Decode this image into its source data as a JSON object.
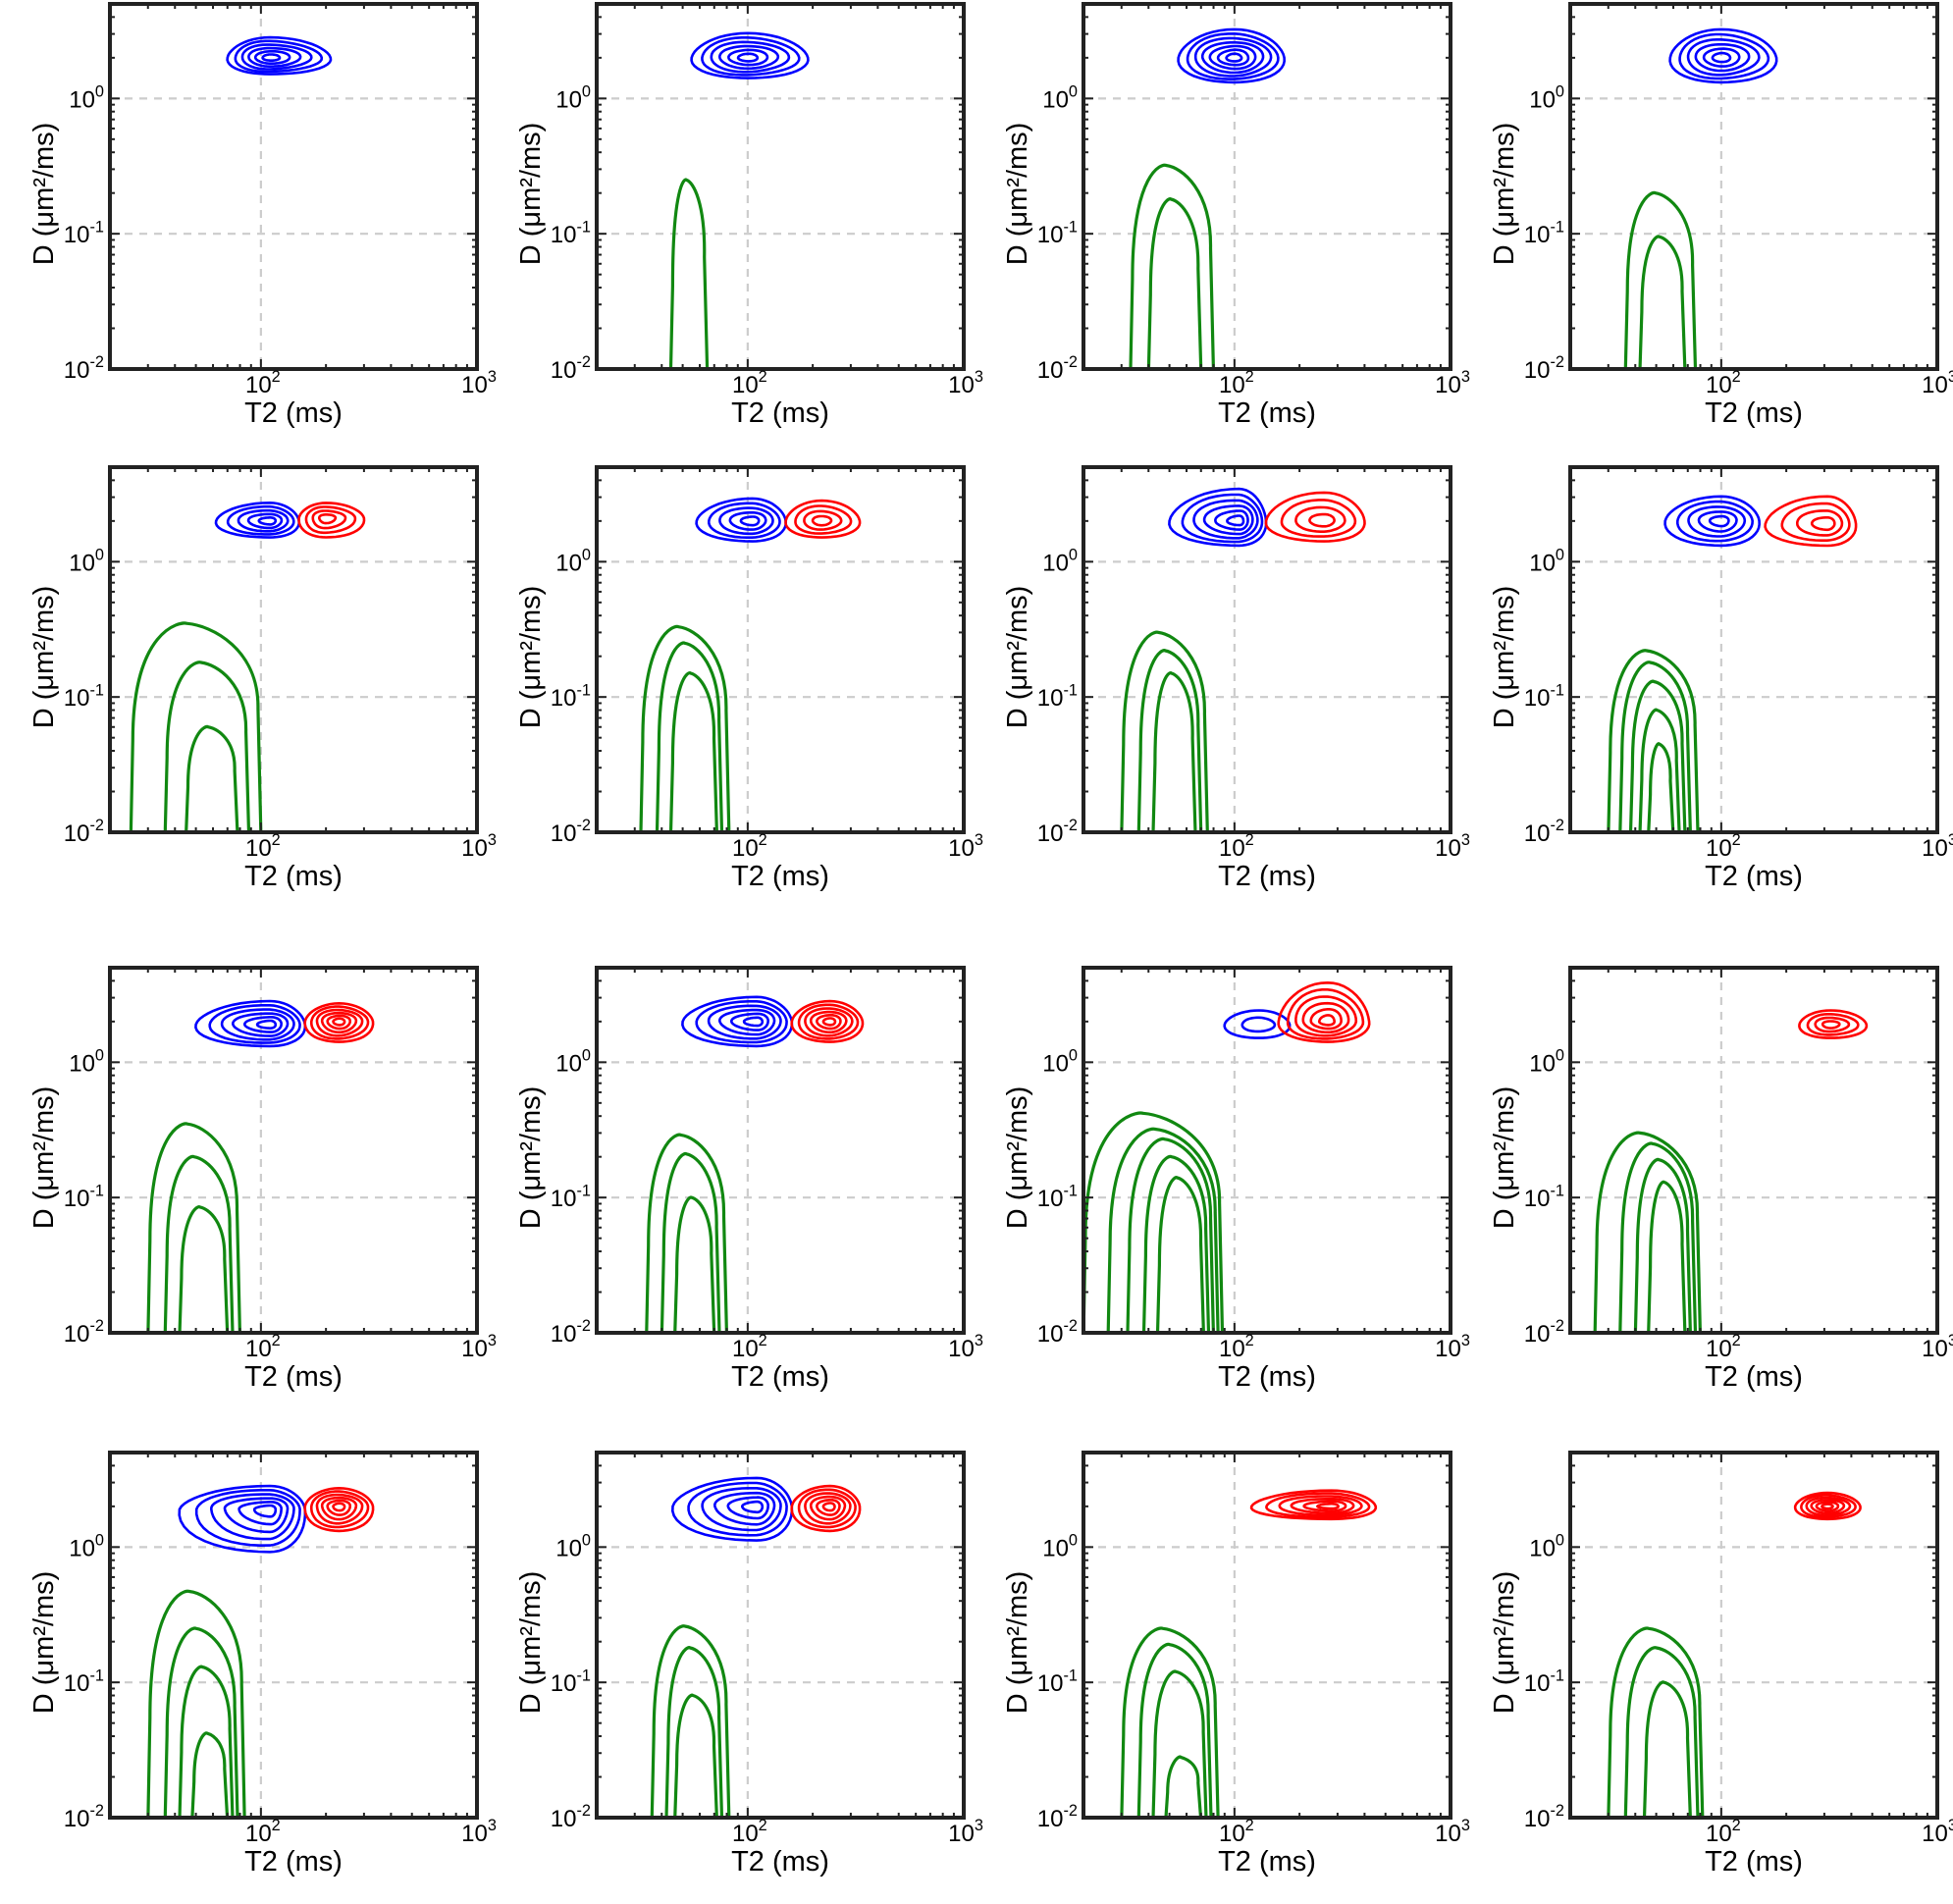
{
  "axes": {
    "xlabel": "T2 (ms)",
    "ylabel": "D (μm²/ms)",
    "x_scale": "log",
    "y_scale": "log",
    "xlim": [
      20,
      1000
    ],
    "ylim": [
      0.01,
      5
    ],
    "x_ticks": [
      {
        "value": 100,
        "base": "10",
        "exp": "2"
      },
      {
        "value": 1000,
        "base": "10",
        "exp": "3"
      }
    ],
    "y_ticks": [
      {
        "value": 0.01,
        "base": "10",
        "exp": "-2"
      },
      {
        "value": 0.1,
        "base": "10",
        "exp": "-1"
      },
      {
        "value": 1,
        "base": "10",
        "exp": "0"
      }
    ],
    "grid": true
  },
  "colors": {
    "blue": "#0000ff",
    "red": "#ff0000",
    "green": "#118811",
    "grid": "#cccccc",
    "frame": "#222222"
  },
  "chart_data": [
    {
      "type": "contour",
      "row": 1,
      "col": 1,
      "peaks": [
        {
          "color": "blue",
          "t2": 110,
          "d": 2.0,
          "t2_lo": 70,
          "t2_hi": 210,
          "d_lo": 1.5,
          "d_hi": 2.8,
          "levels": 6
        }
      ]
    },
    {
      "type": "contour",
      "row": 1,
      "col": 2,
      "peaks": [
        {
          "color": "blue",
          "t2": 100,
          "d": 2.0,
          "t2_lo": 55,
          "t2_hi": 190,
          "d_lo": 1.4,
          "d_hi": 3.0,
          "levels": 6
        }
      ],
      "green": [
        {
          "t2_left": 44,
          "t2_right": 65,
          "d_top": 0.25,
          "open": true
        }
      ]
    },
    {
      "type": "contour",
      "row": 1,
      "col": 3,
      "peaks": [
        {
          "color": "blue",
          "t2": 100,
          "d": 2.0,
          "t2_lo": 55,
          "t2_hi": 170,
          "d_lo": 1.3,
          "d_hi": 3.2,
          "levels": 7
        }
      ],
      "green": [
        {
          "t2_left": 33,
          "t2_right": 80,
          "d_top": 0.32,
          "open": true
        },
        {
          "t2_left": 40,
          "t2_right": 70,
          "d_top": 0.18,
          "open": true
        }
      ]
    },
    {
      "type": "contour",
      "row": 1,
      "col": 4,
      "peaks": [
        {
          "color": "blue",
          "t2": 100,
          "d": 2.0,
          "t2_lo": 58,
          "t2_hi": 180,
          "d_lo": 1.3,
          "d_hi": 3.2,
          "levels": 6
        }
      ],
      "green": [
        {
          "t2_left": 36,
          "t2_right": 76,
          "d_top": 0.2,
          "open": true
        },
        {
          "t2_left": 42,
          "t2_right": 68,
          "d_top": 0.095,
          "open": true
        }
      ]
    },
    {
      "type": "contour",
      "row": 2,
      "col": 1,
      "peaks": [
        {
          "color": "blue",
          "t2": 110,
          "d": 2.0,
          "t2_lo": 62,
          "t2_hi": 150,
          "d_lo": 1.5,
          "d_hi": 2.7,
          "levels": 5
        },
        {
          "color": "red",
          "t2": 200,
          "d": 2.1,
          "t2_lo": 150,
          "t2_hi": 300,
          "d_lo": 1.5,
          "d_hi": 2.7,
          "levels": 4
        }
      ],
      "green": [
        {
          "t2_left": 25,
          "t2_right": 100,
          "d_top": 0.35,
          "open": true
        },
        {
          "t2_left": 36,
          "t2_right": 88,
          "d_top": 0.18,
          "open": true
        },
        {
          "t2_left": 45,
          "t2_right": 78,
          "d_top": 0.06,
          "open": true
        }
      ]
    },
    {
      "type": "contour",
      "row": 2,
      "col": 2,
      "peaks": [
        {
          "color": "blue",
          "t2": 105,
          "d": 2.0,
          "t2_lo": 58,
          "t2_hi": 150,
          "d_lo": 1.4,
          "d_hi": 2.9,
          "levels": 5
        },
        {
          "color": "red",
          "t2": 220,
          "d": 2.0,
          "t2_lo": 150,
          "t2_hi": 330,
          "d_lo": 1.5,
          "d_hi": 2.8,
          "levels": 4
        }
      ],
      "green": [
        {
          "t2_left": 32,
          "t2_right": 82,
          "d_top": 0.33,
          "open": true
        },
        {
          "t2_left": 38,
          "t2_right": 76,
          "d_top": 0.25,
          "open": true
        },
        {
          "t2_left": 44,
          "t2_right": 72,
          "d_top": 0.15,
          "open": true
        }
      ]
    },
    {
      "type": "contour",
      "row": 2,
      "col": 3,
      "peaks": [
        {
          "color": "blue",
          "t2": 105,
          "d": 2.0,
          "t2_lo": 50,
          "t2_hi": 140,
          "d_lo": 1.3,
          "d_hi": 3.4,
          "levels": 6
        },
        {
          "color": "red",
          "t2": 260,
          "d": 2.0,
          "t2_lo": 140,
          "t2_hi": 400,
          "d_lo": 1.4,
          "d_hi": 3.2,
          "levels": 4
        }
      ],
      "green": [
        {
          "t2_left": 30,
          "t2_right": 75,
          "d_top": 0.3,
          "open": true
        },
        {
          "t2_left": 36,
          "t2_right": 70,
          "d_top": 0.22,
          "open": true
        },
        {
          "t2_left": 42,
          "t2_right": 66,
          "d_top": 0.15,
          "open": true
        }
      ]
    },
    {
      "type": "contour",
      "row": 2,
      "col": 4,
      "peaks": [
        {
          "color": "blue",
          "t2": 100,
          "d": 2.0,
          "t2_lo": 55,
          "t2_hi": 150,
          "d_lo": 1.3,
          "d_hi": 3.0,
          "levels": 5
        },
        {
          "color": "red",
          "t2": 310,
          "d": 1.9,
          "t2_lo": 160,
          "t2_hi": 420,
          "d_lo": 1.3,
          "d_hi": 3.0,
          "levels": 4
        }
      ],
      "green": [
        {
          "t2_left": 30,
          "t2_right": 78,
          "d_top": 0.22,
          "open": true
        },
        {
          "t2_left": 34,
          "t2_right": 72,
          "d_top": 0.18,
          "open": true
        },
        {
          "t2_left": 38,
          "t2_right": 68,
          "d_top": 0.13,
          "open": true
        },
        {
          "t2_left": 42,
          "t2_right": 64,
          "d_top": 0.08,
          "open": true
        },
        {
          "t2_left": 46,
          "t2_right": 60,
          "d_top": 0.045,
          "open": true
        }
      ]
    },
    {
      "type": "contour",
      "row": 3,
      "col": 1,
      "peaks": [
        {
          "color": "blue",
          "t2": 110,
          "d": 1.9,
          "t2_lo": 50,
          "t2_hi": 160,
          "d_lo": 1.3,
          "d_hi": 2.8,
          "levels": 6
        },
        {
          "color": "red",
          "t2": 230,
          "d": 2.0,
          "t2_lo": 160,
          "t2_hi": 330,
          "d_lo": 1.4,
          "d_hi": 2.7,
          "levels": 6
        }
      ],
      "green": [
        {
          "t2_left": 30,
          "t2_right": 80,
          "d_top": 0.35,
          "open": true
        },
        {
          "t2_left": 36,
          "t2_right": 74,
          "d_top": 0.2,
          "open": true
        },
        {
          "t2_left": 42,
          "t2_right": 70,
          "d_top": 0.085,
          "open": true
        }
      ]
    },
    {
      "type": "contour",
      "row": 3,
      "col": 2,
      "peaks": [
        {
          "color": "blue",
          "t2": 110,
          "d": 2.0,
          "t2_lo": 50,
          "t2_hi": 160,
          "d_lo": 1.3,
          "d_hi": 3.0,
          "levels": 6
        },
        {
          "color": "red",
          "t2": 240,
          "d": 2.0,
          "t2_lo": 160,
          "t2_hi": 340,
          "d_lo": 1.4,
          "d_hi": 2.8,
          "levels": 6
        }
      ],
      "green": [
        {
          "t2_left": 34,
          "t2_right": 80,
          "d_top": 0.29,
          "open": true
        },
        {
          "t2_left": 40,
          "t2_right": 74,
          "d_top": 0.21,
          "open": true
        },
        {
          "t2_left": 46,
          "t2_right": 70,
          "d_top": 0.1,
          "open": true
        }
      ]
    },
    {
      "type": "contour",
      "row": 3,
      "col": 3,
      "peaks": [
        {
          "color": "blue",
          "t2": 130,
          "d": 1.9,
          "t2_lo": 90,
          "t2_hi": 180,
          "d_lo": 1.5,
          "d_hi": 2.4,
          "levels": 2
        },
        {
          "color": "red",
          "t2": 270,
          "d": 2.0,
          "t2_lo": 160,
          "t2_hi": 420,
          "d_lo": 1.4,
          "d_hi": 3.8,
          "levels": 6
        }
      ],
      "green": [
        {
          "t2_left": 20,
          "t2_right": 88,
          "d_top": 0.42,
          "open": true
        },
        {
          "t2_left": 26,
          "t2_right": 84,
          "d_top": 0.32,
          "open": true
        },
        {
          "t2_left": 32,
          "t2_right": 80,
          "d_top": 0.27,
          "open": true
        },
        {
          "t2_left": 38,
          "t2_right": 76,
          "d_top": 0.2,
          "open": true
        },
        {
          "t2_left": 44,
          "t2_right": 72,
          "d_top": 0.14,
          "open": true
        }
      ]
    },
    {
      "type": "contour",
      "row": 3,
      "col": 4,
      "peaks": [
        {
          "color": "red",
          "t2": 320,
          "d": 1.9,
          "t2_lo": 230,
          "t2_hi": 470,
          "d_lo": 1.5,
          "d_hi": 2.4,
          "levels": 4
        }
      ],
      "green": [
        {
          "t2_left": 26,
          "t2_right": 80,
          "d_top": 0.3,
          "open": true
        },
        {
          "t2_left": 34,
          "t2_right": 76,
          "d_top": 0.25,
          "open": true
        },
        {
          "t2_left": 40,
          "t2_right": 72,
          "d_top": 0.19,
          "open": true
        },
        {
          "t2_left": 46,
          "t2_right": 68,
          "d_top": 0.13,
          "open": true
        }
      ]
    },
    {
      "type": "contour",
      "row": 4,
      "col": 1,
      "peaks": [
        {
          "color": "blue",
          "t2": 110,
          "d": 1.9,
          "t2_lo": 42,
          "t2_hi": 160,
          "d_lo": 0.9,
          "d_hi": 2.8,
          "levels": 6
        },
        {
          "color": "red",
          "t2": 230,
          "d": 2.0,
          "t2_lo": 160,
          "t2_hi": 330,
          "d_lo": 1.3,
          "d_hi": 2.7,
          "levels": 6
        }
      ],
      "green": [
        {
          "t2_left": 30,
          "t2_right": 84,
          "d_top": 0.47,
          "open": true
        },
        {
          "t2_left": 36,
          "t2_right": 78,
          "d_top": 0.25,
          "open": true
        },
        {
          "t2_left": 42,
          "t2_right": 74,
          "d_top": 0.13,
          "open": true
        },
        {
          "t2_left": 48,
          "t2_right": 70,
          "d_top": 0.042,
          "open": true
        }
      ]
    },
    {
      "type": "contour",
      "row": 4,
      "col": 2,
      "peaks": [
        {
          "color": "blue",
          "t2": 110,
          "d": 2.0,
          "t2_lo": 45,
          "t2_hi": 160,
          "d_lo": 1.1,
          "d_hi": 3.2,
          "levels": 6
        },
        {
          "color": "red",
          "t2": 240,
          "d": 2.0,
          "t2_lo": 160,
          "t2_hi": 330,
          "d_lo": 1.3,
          "d_hi": 2.8,
          "levels": 6
        }
      ],
      "green": [
        {
          "t2_left": 36,
          "t2_right": 82,
          "d_top": 0.26,
          "open": true
        },
        {
          "t2_left": 42,
          "t2_right": 76,
          "d_top": 0.18,
          "open": true
        },
        {
          "t2_left": 46,
          "t2_right": 72,
          "d_top": 0.08,
          "open": true
        }
      ]
    },
    {
      "type": "contour",
      "row": 4,
      "col": 3,
      "peaks": [
        {
          "color": "red",
          "t2": 280,
          "d": 2.0,
          "t2_lo": 120,
          "t2_hi": 450,
          "d_lo": 1.6,
          "d_hi": 2.6,
          "levels": 6
        }
      ],
      "green": [
        {
          "t2_left": 30,
          "t2_right": 84,
          "d_top": 0.25,
          "open": true
        },
        {
          "t2_left": 36,
          "t2_right": 78,
          "d_top": 0.19,
          "open": true
        },
        {
          "t2_left": 42,
          "t2_right": 74,
          "d_top": 0.12,
          "open": true
        },
        {
          "t2_left": 48,
          "t2_right": 70,
          "d_top": 0.028,
          "open": true
        }
      ]
    },
    {
      "type": "contour",
      "row": 4,
      "col": 4,
      "peaks": [
        {
          "color": "red",
          "t2": 310,
          "d": 2.0,
          "t2_lo": 220,
          "t2_hi": 440,
          "d_lo": 1.6,
          "d_hi": 2.5,
          "levels": 6
        }
      ],
      "green": [
        {
          "t2_left": 30,
          "t2_right": 82,
          "d_top": 0.25,
          "open": true
        },
        {
          "t2_left": 36,
          "t2_right": 78,
          "d_top": 0.18,
          "open": true
        },
        {
          "t2_left": 44,
          "t2_right": 72,
          "d_top": 0.1,
          "open": true
        }
      ]
    }
  ]
}
